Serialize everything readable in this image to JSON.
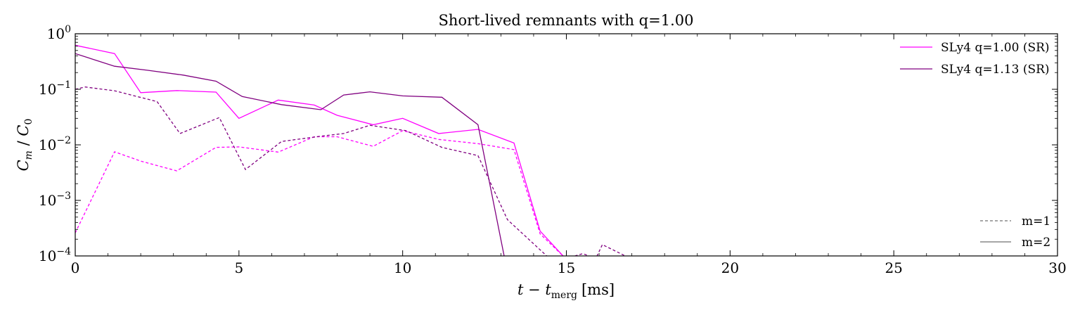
{
  "chart_data": {
    "type": "line",
    "title": "Short-lived remnants with q=1.00",
    "xlabel_main": "t − t",
    "xlabel_sub": "merg",
    "xlabel_unit": "[ms]",
    "ylabel_main": "C",
    "ylabel_sub_m": "m",
    "ylabel_slash": " / ",
    "ylabel_sub_0": "0",
    "xlim": [
      0,
      30
    ],
    "ylim": [
      0.0001,
      1
    ],
    "yscale": "log",
    "x_ticks": [
      0,
      5,
      10,
      15,
      20,
      25,
      30
    ],
    "x_tick_labels": [
      "0",
      "5",
      "10",
      "15",
      "20",
      "25",
      "30"
    ],
    "y_ticks": [
      {
        "value": 1,
        "base": "10",
        "exp": "0"
      },
      {
        "value": 0.1,
        "base": "10",
        "exp": "−1"
      },
      {
        "value": 0.01,
        "base": "10",
        "exp": "−2"
      },
      {
        "value": 0.001,
        "base": "10",
        "exp": "−3"
      },
      {
        "value": 0.0001,
        "base": "10",
        "exp": "−4"
      }
    ],
    "grid": false,
    "legend_models": {
      "placement": "top-right",
      "entries": [
        {
          "label": "SLy4 q=1.00 (SR)",
          "color": "#ff00ff"
        },
        {
          "label": "SLy4 q=1.13 (SR)",
          "color": "#800080"
        }
      ]
    },
    "legend_modes": {
      "placement": "bottom-right",
      "entries": [
        {
          "label": "m=1",
          "style": "dashed",
          "color": "#707070"
        },
        {
          "label": "m=2",
          "style": "solid",
          "color": "#707070"
        }
      ]
    },
    "series": [
      {
        "model": "SLy4 q=1.00 (SR)",
        "mode": "m=2",
        "style": "solid",
        "color": "#ff00ff",
        "points": [
          [
            0,
            0.62
          ],
          [
            1.2,
            0.44
          ],
          [
            2.0,
            0.087
          ],
          [
            3.1,
            0.095
          ],
          [
            4.3,
            0.089
          ],
          [
            5.0,
            0.03
          ],
          [
            6.2,
            0.064
          ],
          [
            7.3,
            0.052
          ],
          [
            8.0,
            0.034
          ],
          [
            9.1,
            0.023
          ],
          [
            10.0,
            0.03
          ],
          [
            11.1,
            0.016
          ],
          [
            12.3,
            0.019
          ],
          [
            13.4,
            0.0108
          ],
          [
            14.2,
            0.00028
          ],
          [
            14.9,
            0.0001
          ]
        ]
      },
      {
        "model": "SLy4 q=1.13 (SR)",
        "mode": "m=2",
        "style": "solid",
        "color": "#800080",
        "points": [
          [
            0,
            0.44
          ],
          [
            1.2,
            0.26
          ],
          [
            2.2,
            0.22
          ],
          [
            3.3,
            0.18
          ],
          [
            4.3,
            0.14
          ],
          [
            5.1,
            0.074
          ],
          [
            6.3,
            0.053
          ],
          [
            7.5,
            0.043
          ],
          [
            8.2,
            0.079
          ],
          [
            9.0,
            0.09
          ],
          [
            10.0,
            0.076
          ],
          [
            11.2,
            0.072
          ],
          [
            12.3,
            0.023
          ],
          [
            13.1,
            0.0001
          ]
        ]
      },
      {
        "model": "SLy4 q=1.00 (SR)",
        "mode": "m=1",
        "style": "dashed",
        "color": "#ff00ff",
        "points": [
          [
            0,
            0.00026
          ],
          [
            1.2,
            0.0075
          ],
          [
            2.0,
            0.0051
          ],
          [
            3.1,
            0.0034
          ],
          [
            4.3,
            0.009
          ],
          [
            5.0,
            0.0092
          ],
          [
            6.2,
            0.0074
          ],
          [
            7.3,
            0.014
          ],
          [
            8.0,
            0.014
          ],
          [
            9.1,
            0.0094
          ],
          [
            10.0,
            0.018
          ],
          [
            11.1,
            0.0125
          ],
          [
            12.3,
            0.0105
          ],
          [
            13.4,
            0.0082
          ],
          [
            14.2,
            0.00025
          ],
          [
            14.9,
            0.0001
          ]
        ]
      },
      {
        "model": "SLy4 q=1.13 (SR)",
        "mode": "m=1",
        "style": "dashed",
        "color": "#800080",
        "points": [
          [
            0,
            0.1
          ],
          [
            0.3,
            0.11
          ],
          [
            1.2,
            0.094
          ],
          [
            2.5,
            0.06
          ],
          [
            3.2,
            0.016
          ],
          [
            4.4,
            0.031
          ],
          [
            5.2,
            0.0036
          ],
          [
            6.3,
            0.0115
          ],
          [
            7.5,
            0.0143
          ],
          [
            8.2,
            0.016
          ],
          [
            9.0,
            0.0225
          ],
          [
            10.1,
            0.018
          ],
          [
            11.2,
            0.009
          ],
          [
            12.3,
            0.0064
          ],
          [
            13.2,
            0.00045
          ],
          [
            14.4,
            0.0001
          ],
          [
            15.0,
            9e-05
          ],
          [
            15.5,
            0.00011
          ],
          [
            15.9,
            9e-05
          ],
          [
            16.1,
            0.00016
          ],
          [
            16.8,
            0.0001
          ]
        ]
      }
    ]
  }
}
